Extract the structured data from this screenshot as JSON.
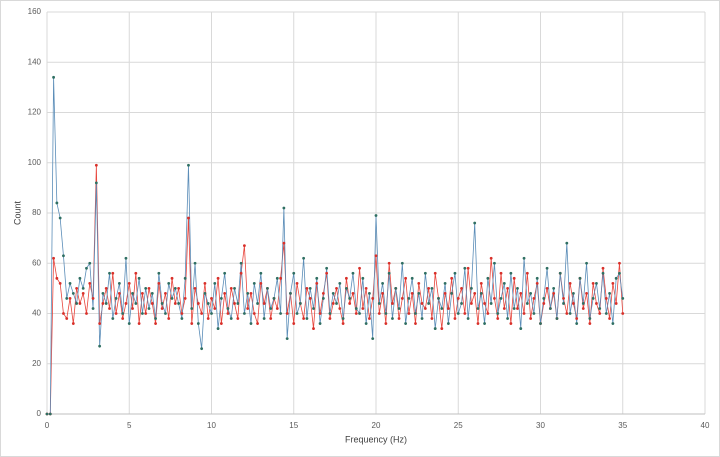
{
  "chart_data": {
    "type": "line",
    "x_label": "Frequency (Hz)",
    "y_label": "Count",
    "xlim": [
      0,
      40
    ],
    "xticks": [
      0,
      5,
      10,
      15,
      20,
      25,
      30,
      35,
      40
    ],
    "ylim": [
      0,
      160
    ],
    "yticks": [
      0,
      20,
      40,
      60,
      80,
      100,
      120,
      140,
      160
    ],
    "grid": true,
    "x": [
      0,
      0.2,
      0.4,
      0.6,
      0.8,
      1,
      1.2,
      1.4,
      1.6,
      1.8,
      2,
      2.2,
      2.4,
      2.6,
      2.8,
      3,
      3.2,
      3.4,
      3.6,
      3.8,
      4,
      4.2,
      4.4,
      4.6,
      4.8,
      5,
      5.2,
      5.4,
      5.6,
      5.8,
      6,
      6.2,
      6.4,
      6.6,
      6.8,
      7,
      7.2,
      7.4,
      7.6,
      7.8,
      8,
      8.2,
      8.4,
      8.6,
      8.8,
      9,
      9.2,
      9.4,
      9.6,
      9.8,
      10,
      10.2,
      10.4,
      10.6,
      10.8,
      11,
      11.2,
      11.4,
      11.6,
      11.8,
      12,
      12.2,
      12.4,
      12.6,
      12.8,
      13,
      13.2,
      13.4,
      13.6,
      13.8,
      14,
      14.2,
      14.4,
      14.6,
      14.8,
      15,
      15.2,
      15.4,
      15.6,
      15.8,
      16,
      16.2,
      16.4,
      16.6,
      16.8,
      17,
      17.2,
      17.4,
      17.6,
      17.8,
      18,
      18.2,
      18.4,
      18.6,
      18.8,
      19,
      19.2,
      19.4,
      19.6,
      19.8,
      20,
      20.2,
      20.4,
      20.6,
      20.8,
      21,
      21.2,
      21.4,
      21.6,
      21.8,
      22,
      22.2,
      22.4,
      22.6,
      22.8,
      23,
      23.2,
      23.4,
      23.6,
      23.8,
      24,
      24.2,
      24.4,
      24.6,
      24.8,
      25,
      25.2,
      25.4,
      25.6,
      25.8,
      26,
      26.2,
      26.4,
      26.6,
      26.8,
      27,
      27.2,
      27.4,
      27.6,
      27.8,
      28,
      28.2,
      28.4,
      28.6,
      28.8,
      29,
      29.2,
      29.4,
      29.6,
      29.8,
      30,
      30.2,
      30.4,
      30.6,
      30.8,
      31,
      31.2,
      31.4,
      31.6,
      31.8,
      32,
      32.2,
      32.4,
      32.6,
      32.8,
      33,
      33.2,
      33.4,
      33.6,
      33.8,
      34,
      34.2,
      34.4,
      34.6,
      34.8,
      35
    ],
    "series": [
      {
        "color": "#e8453c",
        "marker_color": "#d8302a",
        "values": [
          0,
          0,
          62,
          54,
          52,
          40,
          38,
          46,
          36,
          50,
          44,
          48,
          40,
          52,
          46,
          99,
          36,
          44,
          50,
          42,
          56,
          40,
          48,
          38,
          44,
          52,
          42,
          56,
          36,
          48,
          40,
          50,
          44,
          36,
          52,
          42,
          48,
          38,
          54,
          44,
          50,
          40,
          46,
          78,
          36,
          50,
          44,
          40,
          52,
          38,
          46,
          42,
          54,
          36,
          48,
          40,
          50,
          44,
          38,
          56,
          67,
          42,
          48,
          40,
          36,
          52,
          44,
          50,
          38,
          46,
          42,
          54,
          68,
          40,
          48,
          36,
          52,
          44,
          38,
          50,
          46,
          34,
          52,
          40,
          48,
          56,
          38,
          44,
          50,
          42,
          36,
          54,
          44,
          48,
          40,
          58,
          42,
          50,
          38,
          46,
          63,
          40,
          48,
          36,
          60,
          44,
          50,
          38,
          46,
          54,
          40,
          48,
          36,
          52,
          44,
          42,
          50,
          38,
          56,
          46,
          34,
          48,
          42,
          54,
          38,
          46,
          50,
          40,
          58,
          44,
          48,
          36,
          52,
          44,
          40,
          62,
          46,
          38,
          56,
          42,
          50,
          36,
          54,
          42,
          48,
          40,
          56,
          38,
          46,
          52,
          36,
          44,
          50,
          42,
          48,
          38,
          56,
          46,
          40,
          52,
          44,
          38,
          54,
          42,
          48,
          36,
          52,
          44,
          40,
          58,
          46,
          38,
          52,
          44,
          60,
          40
        ]
      },
      {
        "color": "#5b8db8",
        "marker_color": "#2f6f62",
        "values": [
          0,
          0,
          134,
          84,
          78,
          63,
          46,
          52,
          48,
          44,
          54,
          50,
          58,
          60,
          42,
          92,
          27,
          48,
          44,
          56,
          38,
          46,
          52,
          40,
          62,
          36,
          48,
          44,
          54,
          40,
          50,
          42,
          48,
          38,
          56,
          44,
          40,
          52,
          46,
          50,
          44,
          38,
          54,
          99,
          42,
          60,
          36,
          26,
          48,
          44,
          40,
          52,
          34,
          46,
          56,
          42,
          38,
          50,
          44,
          60,
          40,
          48,
          36,
          52,
          44,
          56,
          38,
          50,
          42,
          46,
          54,
          40,
          82,
          30,
          48,
          56,
          40,
          44,
          62,
          38,
          50,
          42,
          54,
          36,
          46,
          58,
          40,
          48,
          44,
          52,
          38,
          50,
          46,
          56,
          42,
          40,
          54,
          36,
          48,
          30,
          79,
          44,
          52,
          40,
          56,
          38,
          50,
          42,
          60,
          36,
          46,
          54,
          40,
          48,
          38,
          56,
          44,
          50,
          34,
          46,
          42,
          52,
          36,
          48,
          56,
          40,
          44,
          58,
          38,
          50,
          76,
          42,
          48,
          36,
          54,
          44,
          60,
          40,
          46,
          52,
          38,
          56,
          42,
          50,
          34,
          62,
          44,
          48,
          40,
          54,
          36,
          46,
          58,
          42,
          50,
          38,
          56,
          44,
          68,
          40,
          48,
          36,
          54,
          44,
          60,
          38,
          46,
          52,
          42,
          56,
          40,
          48,
          36,
          54,
          56,
          46
        ]
      }
    ]
  }
}
